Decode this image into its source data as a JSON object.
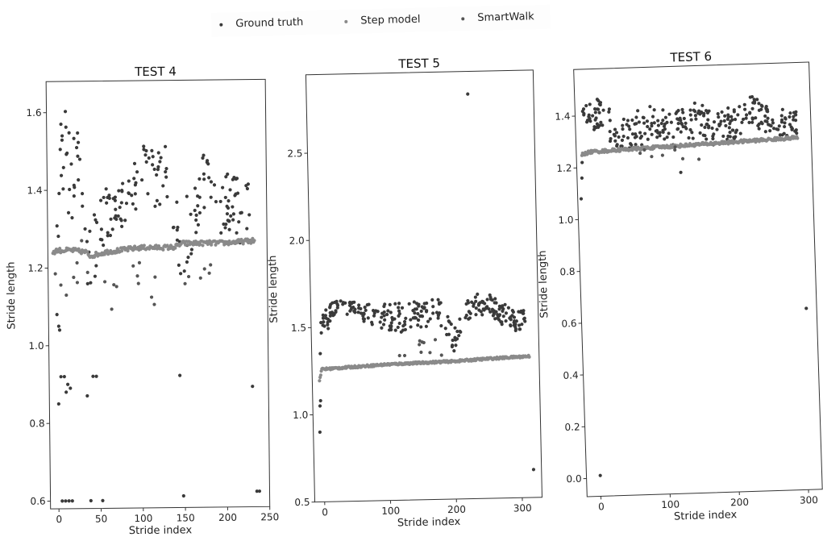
{
  "legend": {
    "items": [
      {
        "label": "Ground truth",
        "color": "#3a3a3a"
      },
      {
        "label": "Step model",
        "color": "#8a8a8a"
      },
      {
        "label": "SmartWalk",
        "color": "#555555"
      }
    ]
  },
  "chart_data": [
    {
      "type": "scatter",
      "title": "TEST 4",
      "xlabel": "Stride index",
      "ylabel": "Stride length",
      "xlim": [
        -10,
        250
      ],
      "ylim": [
        0.58,
        1.68
      ],
      "xticks": [
        0,
        50,
        100,
        150,
        200,
        250
      ],
      "yticks": [
        0.6,
        0.8,
        1.0,
        1.2,
        1.4,
        1.6
      ],
      "n": 235,
      "series": [
        {
          "name": "Ground truth",
          "color": "#3a3a3a",
          "points": [
            [
              0,
              1.08
            ],
            [
              2,
              1.05
            ],
            [
              3,
              1.04
            ],
            [
              4,
              0.92
            ],
            [
              8,
              0.92
            ],
            [
              10,
              0.88
            ],
            [
              12,
              0.9
            ],
            [
              15,
              0.89
            ],
            [
              1,
              0.85
            ],
            [
              4,
              0.6
            ],
            [
              8,
              0.6
            ],
            [
              12,
              0.6
            ],
            [
              16,
              0.6
            ],
            [
              35,
              0.87
            ],
            [
              38,
              0.6
            ],
            [
              42,
              0.92
            ],
            [
              46,
              0.92
            ],
            [
              52,
              0.6
            ],
            [
              145,
              0.92
            ],
            [
              148,
              0.61
            ],
            [
              231,
              0.89
            ],
            [
              235,
              0.62
            ],
            [
              238,
              0.62
            ]
          ],
          "band": [
            [
              0,
              1.35,
              0.08
            ],
            [
              5,
              1.42,
              0.1
            ],
            [
              10,
              1.5,
              0.1
            ],
            [
              15,
              1.46,
              0.1
            ],
            [
              20,
              1.4,
              0.08
            ],
            [
              25,
              1.56,
              0.06
            ],
            [
              30,
              1.45,
              0.1
            ],
            [
              35,
              1.3,
              0.1
            ],
            [
              40,
              1.25,
              0.1
            ],
            [
              45,
              1.3,
              0.1
            ],
            [
              50,
              1.35,
              0.1
            ],
            [
              55,
              1.32,
              0.08
            ],
            [
              60,
              1.33,
              0.06
            ],
            [
              70,
              1.36,
              0.06
            ],
            [
              80,
              1.37,
              0.05
            ],
            [
              90,
              1.38,
              0.05
            ],
            [
              100,
              1.47,
              0.08
            ],
            [
              110,
              1.45,
              0.07
            ],
            [
              120,
              1.4,
              0.07
            ],
            [
              130,
              1.5,
              0.06
            ],
            [
              140,
              1.28,
              0.08
            ],
            [
              150,
              1.27,
              0.08
            ],
            [
              160,
              1.32,
              0.07
            ],
            [
              170,
              1.38,
              0.05
            ],
            [
              180,
              1.43,
              0.07
            ],
            [
              190,
              1.38,
              0.06
            ],
            [
              200,
              1.35,
              0.06
            ],
            [
              210,
              1.38,
              0.06
            ],
            [
              220,
              1.32,
              0.06
            ],
            [
              230,
              1.36,
              0.05
            ]
          ],
          "samples": 200
        },
        {
          "name": "Step model",
          "color": "#8a8a8a",
          "line": [
            [
              -4,
              1.24
            ],
            [
              0,
              1.245
            ],
            [
              20,
              1.245
            ],
            [
              35,
              1.24
            ],
            [
              40,
              1.23
            ],
            [
              60,
              1.24
            ],
            [
              100,
              1.25
            ],
            [
              140,
              1.25
            ],
            [
              150,
              1.26
            ],
            [
              200,
              1.26
            ],
            [
              235,
              1.265
            ]
          ],
          "samples": 235
        },
        {
          "name": "SmartWalk",
          "color": "#555555",
          "band": [
            [
              -3,
              1.2,
              0.05
            ],
            [
              5,
              1.18,
              0.08
            ],
            [
              40,
              1.22,
              0.04
            ],
            [
              60,
              1.15,
              0.06
            ],
            [
              140,
              1.18,
              0.06
            ],
            [
              200,
              1.23,
              0.03
            ]
          ],
          "samples": 25
        }
      ]
    },
    {
      "type": "scatter",
      "title": "TEST 5",
      "xlabel": "Stride index",
      "ylabel": "Stride length",
      "xlim": [
        -15,
        330
      ],
      "ylim": [
        0.5,
        2.95
      ],
      "xticks": [
        0,
        100,
        200,
        300
      ],
      "yticks": [
        0.5,
        1.0,
        1.5,
        2.0,
        2.5
      ],
      "n": 320,
      "series": [
        {
          "name": "Ground truth",
          "color": "#3a3a3a",
          "points": [
            [
              -5,
              0.9
            ],
            [
              -4,
              1.05
            ],
            [
              -3,
              1.08
            ],
            [
              -2,
              1.35
            ],
            [
              230,
              2.82
            ],
            [
              318,
              0.66
            ]
          ],
          "band": [
            [
              0,
              1.5,
              0.05
            ],
            [
              10,
              1.55,
              0.05
            ],
            [
              20,
              1.6,
              0.04
            ],
            [
              30,
              1.63,
              0.04
            ],
            [
              40,
              1.6,
              0.04
            ],
            [
              60,
              1.58,
              0.05
            ],
            [
              80,
              1.57,
              0.05
            ],
            [
              100,
              1.55,
              0.06
            ],
            [
              120,
              1.55,
              0.07
            ],
            [
              140,
              1.56,
              0.06
            ],
            [
              160,
              1.57,
              0.06
            ],
            [
              180,
              1.6,
              0.06
            ],
            [
              195,
              1.45,
              0.08
            ],
            [
              205,
              1.4,
              0.06
            ],
            [
              215,
              1.55,
              0.06
            ],
            [
              230,
              1.6,
              0.05
            ],
            [
              250,
              1.62,
              0.05
            ],
            [
              270,
              1.57,
              0.05
            ],
            [
              290,
              1.52,
              0.05
            ],
            [
              310,
              1.52,
              0.04
            ]
          ],
          "samples": 290
        },
        {
          "name": "Step model",
          "color": "#8a8a8a",
          "line": [
            [
              -4,
              1.2
            ],
            [
              0,
              1.26
            ],
            [
              50,
              1.27
            ],
            [
              100,
              1.28
            ],
            [
              200,
              1.29
            ],
            [
              250,
              1.3
            ],
            [
              315,
              1.31
            ]
          ],
          "samples": 320
        },
        {
          "name": "SmartWalk",
          "color": "#555555",
          "band": [
            [
              110,
              1.38,
              0.05
            ],
            [
              200,
              1.35,
              0.05
            ]
          ],
          "samples": 10
        }
      ]
    },
    {
      "type": "scatter",
      "title": "TEST 6",
      "xlabel": "Stride index",
      "ylabel": "Stride length",
      "xlim": [
        -20,
        320
      ],
      "ylim": [
        -0.07,
        1.58
      ],
      "xticks": [
        0,
        100,
        200,
        300
      ],
      "yticks": [
        0.0,
        0.2,
        0.4,
        0.6,
        0.8,
        1.0,
        1.2,
        1.4
      ],
      "n": 300,
      "series": [
        {
          "name": "Ground truth",
          "color": "#3a3a3a",
          "points": [
            [
              -15,
              1.08
            ],
            [
              -13,
              1.16
            ],
            [
              -12,
              1.22
            ],
            [
              0,
              0.01
            ],
            [
              130,
              1.17
            ],
            [
              305,
              0.63
            ]
          ],
          "band": [
            [
              -14,
              1.48,
              0.03
            ],
            [
              0,
              1.42,
              0.05
            ],
            [
              20,
              1.38,
              0.06
            ],
            [
              40,
              1.33,
              0.05
            ],
            [
              60,
              1.33,
              0.05
            ],
            [
              80,
              1.36,
              0.06
            ],
            [
              100,
              1.36,
              0.05
            ],
            [
              120,
              1.32,
              0.06
            ],
            [
              140,
              1.35,
              0.06
            ],
            [
              160,
              1.38,
              0.05
            ],
            [
              180,
              1.33,
              0.05
            ],
            [
              200,
              1.35,
              0.05
            ],
            [
              220,
              1.37,
              0.05
            ],
            [
              240,
              1.4,
              0.05
            ],
            [
              260,
              1.36,
              0.04
            ],
            [
              280,
              1.35,
              0.04
            ],
            [
              300,
              1.35,
              0.04
            ]
          ],
          "samples": 300
        },
        {
          "name": "Step model",
          "color": "#8a8a8a",
          "line": [
            [
              -12,
              1.25
            ],
            [
              0,
              1.26
            ],
            [
              100,
              1.27
            ],
            [
              200,
              1.28
            ],
            [
              300,
              1.29
            ]
          ],
          "samples": 300
        },
        {
          "name": "SmartWalk",
          "color": "#555555",
          "band": [
            [
              50,
              1.26,
              0.02
            ],
            [
              160,
              1.24,
              0.02
            ]
          ],
          "samples": 8
        }
      ]
    }
  ]
}
